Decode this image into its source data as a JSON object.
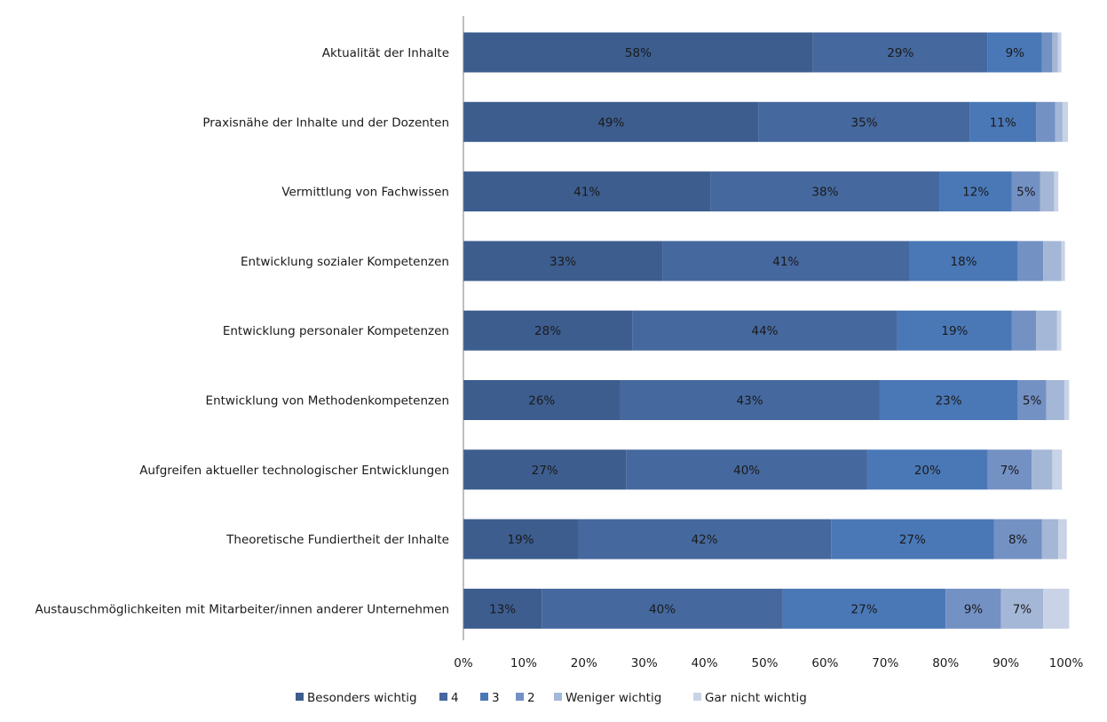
{
  "chart_data": {
    "type": "bar",
    "orientation": "horizontal",
    "stacked": true,
    "categories": [
      "Aktualität der Inhalte",
      "Praxisnähe der Inhalte und der Dozenten",
      "Vermittlung von Fachwissen",
      "Entwicklung sozialer Kompetenzen",
      "Entwicklung personaler Kompetenzen",
      "Entwicklung von Methodenkompetenzen",
      "Aufgreifen aktueller technologischer Entwicklungen",
      "Theoretische Fundiertheit der Inhalte",
      "Austauschmöglichkeiten mit Mitarbeiter/innen anderer Unternehmen"
    ],
    "series": [
      {
        "name": "Besonders wichtig",
        "color": "#3d5d8f",
        "values": [
          58,
          49,
          41,
          33,
          28,
          26,
          27,
          19,
          13
        ],
        "labels": [
          "58%",
          "49%",
          "41%",
          "33%",
          "28%",
          "26%",
          "27%",
          "19%",
          "13%"
        ]
      },
      {
        "name": "4",
        "color": "#45689e",
        "values": [
          29,
          35,
          38,
          41,
          44,
          43,
          40,
          42,
          40
        ],
        "labels": [
          "29%",
          "35%",
          "38%",
          "41%",
          "44%",
          "43%",
          "40%",
          "42%",
          "40%"
        ]
      },
      {
        "name": "3",
        "color": "#4a78b7",
        "values": [
          9,
          11,
          12,
          18,
          19,
          23,
          20,
          27,
          27
        ],
        "labels": [
          "9%",
          "11%",
          "12%",
          "18%",
          "19%",
          "23%",
          "20%",
          "27%",
          "27%"
        ]
      },
      {
        "name": "2",
        "color": "#7491c4",
        "values": [
          1.7,
          3.2,
          4.7,
          4.2,
          4.0,
          4.7,
          7.3,
          8.0,
          9.2
        ],
        "labels": [
          "",
          "",
          "5%",
          "",
          "",
          "5%",
          "7%",
          "8%",
          "9%"
        ]
      },
      {
        "name": "Weniger wichtig",
        "color": "#a5b7d7",
        "values": [
          0.9,
          1.2,
          2.3,
          3.0,
          3.5,
          3.0,
          3.4,
          2.7,
          7.0
        ],
        "labels": [
          "",
          "",
          "",
          "",
          "",
          "",
          "",
          "",
          "7%"
        ]
      },
      {
        "name": "Gar nicht wichtig",
        "color": "#c8d3e7",
        "values": [
          0.6,
          0.9,
          0.7,
          0.6,
          0.7,
          0.8,
          1.6,
          1.4,
          4.3
        ],
        "labels": [
          "",
          "",
          "",
          "",
          "",
          "",
          "",
          "",
          ""
        ]
      }
    ],
    "xlim": [
      0,
      100
    ],
    "xticks": [
      "0%",
      "10%",
      "20%",
      "30%",
      "40%",
      "50%",
      "60%",
      "70%",
      "80%",
      "90%",
      "100%"
    ],
    "title": "",
    "xlabel": "",
    "ylabel": "",
    "grid": false,
    "legend_position": "bottom"
  }
}
